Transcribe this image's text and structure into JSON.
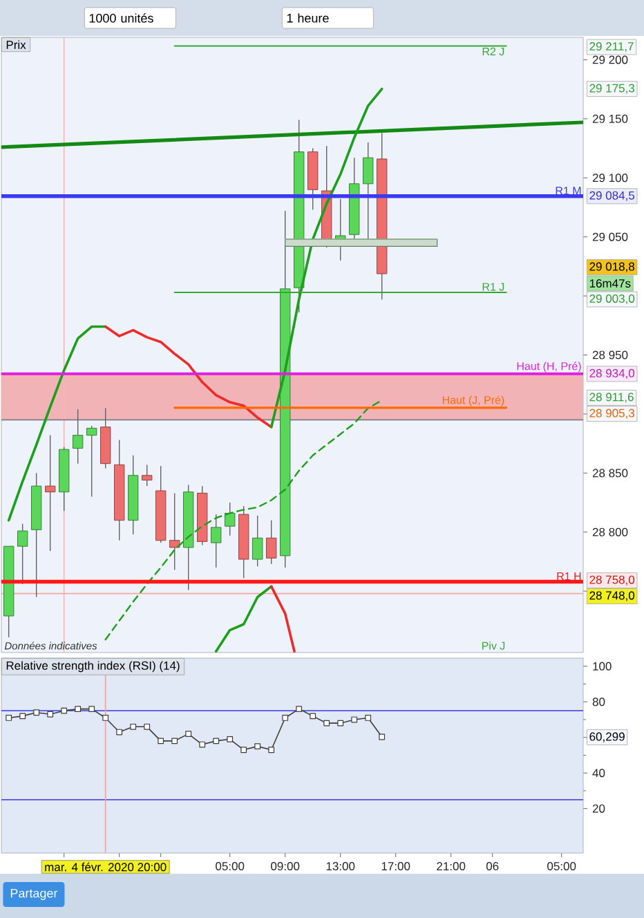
{
  "chart_data": [
    {
      "type": "candlestick",
      "title": "Prix",
      "x": [
        "2020-02-04T13:00",
        "2020-02-04T14:00",
        "2020-02-04T15:00",
        "2020-02-04T16:00",
        "2020-02-04T17:00",
        "2020-02-04T18:00",
        "2020-02-04T19:00",
        "2020-02-04T20:00",
        "2020-02-04T21:00",
        "2020-02-04T22:00",
        "2020-02-04T23:00",
        "2020-02-05T00:00",
        "2020-02-05T01:00",
        "2020-02-05T02:00",
        "2020-02-05T03:00",
        "2020-02-05T04:00",
        "2020-02-05T05:00",
        "2020-02-05T06:00",
        "2020-02-05T07:00",
        "2020-02-05T08:00",
        "2020-02-05T09:00",
        "2020-02-05T10:00",
        "2020-02-05T11:00",
        "2020-02-05T12:00",
        "2020-02-05T13:00",
        "2020-02-05T14:00",
        "2020-02-05T15:00",
        "2020-02-05T16:00"
      ],
      "xlim": [
        "2020-02-04T12:28",
        "2020-02-06T06:34"
      ],
      "ylim": [
        28698,
        29219
      ],
      "yticks": [
        {
          "value": 28750,
          "label": null
        },
        {
          "value": 28800,
          "label": "28 800"
        },
        {
          "value": 28850,
          "label": "28 850"
        },
        {
          "value": 28900,
          "label": null
        },
        {
          "value": 28950,
          "label": "28 950"
        },
        {
          "value": 29000,
          "label": null
        },
        {
          "value": 29050,
          "label": "29 050"
        },
        {
          "value": 29100,
          "label": "29 100"
        },
        {
          "value": 29150,
          "label": "29 150"
        },
        {
          "value": 29200,
          "label": "29 200"
        }
      ],
      "tick_labels": "y",
      "ohlc": [
        [
          28729,
          28788,
          28711,
          28788
        ],
        [
          28788,
          28807,
          28756,
          28801
        ],
        [
          28802,
          28850,
          28745,
          28839
        ],
        [
          28839,
          28882,
          28784,
          28834
        ],
        [
          28834,
          28872,
          28818,
          28870
        ],
        [
          28871,
          28904,
          28858,
          28882
        ],
        [
          28882,
          28890,
          28830,
          28888
        ],
        [
          28889,
          28905,
          28854,
          28858
        ],
        [
          28857,
          28878,
          28793,
          28810
        ],
        [
          28810,
          28865,
          28798,
          28848
        ],
        [
          28848,
          28857,
          28839,
          28844
        ],
        [
          28835,
          28856,
          28791,
          28793
        ],
        [
          28793,
          28833,
          28768,
          28787
        ],
        [
          28787,
          28840,
          28751,
          28834
        ],
        [
          28833,
          28839,
          28789,
          28792
        ],
        [
          28791,
          28815,
          28770,
          28804
        ],
        [
          28805,
          28825,
          28797,
          28816
        ],
        [
          28815,
          28822,
          28761,
          28777
        ],
        [
          28777,
          28814,
          28771,
          28795
        ],
        [
          28795,
          28810,
          28773,
          28778
        ],
        [
          28780,
          29072,
          28770,
          29006
        ],
        [
          29007,
          29149,
          28986,
          29122
        ],
        [
          29122,
          29125,
          29073,
          29090
        ],
        [
          29089,
          29127,
          29041,
          29046
        ],
        [
          29047,
          29082,
          29030,
          29051
        ],
        [
          29052,
          29117,
          29045,
          29095
        ],
        [
          29095,
          29130,
          29044,
          29117
        ],
        [
          29116,
          29138,
          28997,
          29018.8
        ]
      ],
      "colors": [
        "#5ad65a",
        "#5ad65a",
        "#5ad65a",
        "#ee6e6e",
        "#5ad65a",
        "#5ad65a",
        "#5ad65a",
        "#ee6e6e",
        "#ee6e6e",
        "#5ad65a",
        "#ee6e6e",
        "#ee6e6e",
        "#ee6e6e",
        "#5ad65a",
        "#ee6e6e",
        "#5ad65a",
        "#5ad65a",
        "#ee6e6e",
        "#5ad65a",
        "#ee6e6e",
        "#5ad65a",
        "#5ad65a",
        "#ee6e6e",
        "#ee6e6e",
        "#5ad65a",
        "#5ad65a",
        "#5ad65a",
        "#ee6e6e"
      ],
      "series": [
        {
          "type": "line",
          "color": "#138a13",
          "x": [
            "2020-02-04T12:28",
            "2020-02-06T06:34"
          ],
          "values": [
            29126,
            29147
          ]
        },
        {
          "type": "line",
          "color": "#1aa01a",
          "x": [
            "2020-02-04T13:00",
            "2020-02-04T14:00",
            "2020-02-04T15:00",
            "2020-02-04T16:00",
            "2020-02-04T17:00",
            "2020-02-04T18:00",
            "2020-02-04T19:00",
            "2020-02-04T20:00"
          ],
          "values": [
            28810,
            28843,
            28874,
            28906,
            28937,
            28964,
            28974,
            28974
          ]
        },
        {
          "type": "line",
          "color": "#f02a2a",
          "x": [
            "2020-02-04T20:00",
            "2020-02-04T21:00",
            "2020-02-04T22:00",
            "2020-02-04T23:00",
            "2020-02-05T00:00",
            "2020-02-05T01:00",
            "2020-02-05T02:00",
            "2020-02-05T03:00",
            "2020-02-05T04:00",
            "2020-02-05T05:00",
            "2020-02-05T06:00",
            "2020-02-05T07:00",
            "2020-02-05T08:00"
          ],
          "values": [
            28974,
            28966,
            28971,
            28965,
            28961,
            28951,
            28942,
            28927,
            28916,
            28910,
            28907,
            28897,
            28889
          ]
        },
        {
          "type": "line",
          "color": "#1aa01a",
          "x": [
            "2020-02-05T08:00",
            "2020-02-05T09:00",
            "2020-02-05T10:00",
            "2020-02-05T11:00",
            "2020-02-05T12:00",
            "2020-02-05T13:00",
            "2020-02-05T14:00",
            "2020-02-05T15:00",
            "2020-02-05T16:00"
          ],
          "values": [
            28889,
            28937,
            28997,
            29048,
            29078,
            29103,
            29134,
            29161,
            29175.3
          ]
        },
        {
          "type": "line",
          "color": "#1aa01a",
          "line_style": "dashed",
          "x": [
            "2020-02-04T20:00",
            "2020-02-04T21:00",
            "2020-02-04T22:00",
            "2020-02-04T23:00",
            "2020-02-05T00:00",
            "2020-02-05T01:00",
            "2020-02-05T02:00",
            "2020-02-05T03:00",
            "2020-02-05T04:00",
            "2020-02-05T05:00",
            "2020-02-05T06:00",
            "2020-02-05T07:00",
            "2020-02-05T08:00",
            "2020-02-05T09:00",
            "2020-02-05T10:00",
            "2020-02-05T11:00",
            "2020-02-05T12:00",
            "2020-02-05T13:00",
            "2020-02-05T14:00",
            "2020-02-05T15:00",
            "2020-02-05T16:00"
          ],
          "values": [
            28709,
            28725,
            28741,
            28756,
            28770,
            28785,
            28796,
            28805,
            28812,
            28816,
            28819,
            28821,
            28827,
            28836,
            28852,
            28865,
            28874,
            28883,
            28892,
            28905,
            28911.6
          ]
        },
        {
          "type": "line",
          "color": "#1aa01a",
          "x": [
            "2020-02-05T04:00",
            "2020-02-05T05:00",
            "2020-02-05T06:00",
            "2020-02-05T07:00",
            "2020-02-05T08:00"
          ],
          "values": [
            28699,
            28717,
            28722,
            28745,
            28754
          ]
        },
        {
          "type": "line",
          "color": "#f02a2a",
          "x": [
            "2020-02-05T08:00",
            "2020-02-05T09:00",
            "2020-02-05T09:40"
          ],
          "values": [
            28754,
            28731,
            28699
          ]
        },
        {
          "type": "line",
          "name": "R2 J",
          "color": "#33a833",
          "x": [
            "2020-02-05T01:00",
            "2020-02-06T01:00"
          ],
          "values": [
            29211.7,
            29211.7
          ]
        },
        {
          "type": "line",
          "name": "R1 J",
          "color": "#33a833",
          "x": [
            "2020-02-05T01:00",
            "2020-02-06T01:00"
          ],
          "values": [
            29003,
            29003
          ]
        },
        {
          "type": "line",
          "name": "Haut (J, Pré)",
          "color": "#ff6a00",
          "x": [
            "2020-02-05T01:00",
            "2020-02-06T01:00"
          ],
          "values": [
            28905.3,
            28905.3
          ]
        },
        {
          "type": "line",
          "name": "R1 M",
          "color": "#3a3af5",
          "x": [
            "2020-02-04T12:28",
            "2020-02-06T06:34"
          ],
          "values": [
            29084.5,
            29084.5
          ],
          "value_labels": [
            null,
            "29 084,5"
          ]
        },
        {
          "type": "line",
          "name": "Haut (H, Pré)",
          "color": "#e020e0",
          "x": [
            "2020-02-04T12:28",
            "2020-02-06T06:34"
          ],
          "values": [
            28934,
            28934
          ],
          "value_labels": [
            null,
            "28 934,0"
          ]
        },
        {
          "type": "line",
          "name": "R1 H",
          "color": "#ff1a1a",
          "x": [
            "2020-02-04T12:28",
            "2020-02-06T06:34"
          ],
          "values": [
            28758,
            28758
          ],
          "value_labels": [
            null,
            "28 758,0"
          ]
        },
        {
          "type": "line",
          "color": "#8fb08f",
          "x": [
            "2020-02-05T09:00",
            "2020-02-05T20:00"
          ],
          "values": [
            29048,
            29048
          ],
          "lower": [
            29042,
            29042
          ],
          "upper": [
            29048,
            29048
          ]
        }
      ],
      "bands": [
        {
          "axis": "y",
          "from": 28895,
          "to": 28934,
          "color": "#f2b3b7"
        }
      ],
      "ref_lines": [
        {
          "axis": "x",
          "value": "2020-02-04T17:00",
          "color": "#f5b5b5"
        },
        {
          "axis": "y",
          "value": 28748,
          "color": "#f5a5a5"
        },
        {
          "axis": "y",
          "value": 28895,
          "color": "#7c7c84"
        }
      ],
      "annotations": [
        "1000 unités",
        "1 heure",
        "Données indicatives",
        "Piv J",
        "29 211,7",
        "29 175,3",
        "29 018,8",
        "16m47s",
        "29 003,0",
        "28 911,6",
        "28 905,3",
        "28 748,0"
      ]
    },
    {
      "type": "line",
      "title": "Relative strength index (RSI) (14)",
      "x": [
        "2020-02-04T13:00",
        "2020-02-04T14:00",
        "2020-02-04T15:00",
        "2020-02-04T16:00",
        "2020-02-04T17:00",
        "2020-02-04T18:00",
        "2020-02-04T19:00",
        "2020-02-04T20:00",
        "2020-02-04T21:00",
        "2020-02-04T22:00",
        "2020-02-04T23:00",
        "2020-02-05T00:00",
        "2020-02-05T01:00",
        "2020-02-05T02:00",
        "2020-02-05T03:00",
        "2020-02-05T04:00",
        "2020-02-05T05:00",
        "2020-02-05T06:00",
        "2020-02-05T07:00",
        "2020-02-05T08:00",
        "2020-02-05T09:00",
        "2020-02-05T10:00",
        "2020-02-05T11:00",
        "2020-02-05T12:00",
        "2020-02-05T13:00",
        "2020-02-05T14:00",
        "2020-02-05T15:00",
        "2020-02-05T16:00"
      ],
      "values": [
        71,
        72,
        74,
        73,
        75,
        76,
        76,
        71,
        63,
        66,
        66,
        58,
        58,
        62,
        56,
        58,
        59,
        53,
        55,
        53,
        71,
        76,
        72,
        68,
        68,
        70,
        71,
        60.299
      ],
      "color": "#3c3c3c",
      "marker": "square",
      "xlim": [
        "2020-02-04T12:28",
        "2020-02-06T06:34"
      ],
      "ylim": [
        -5,
        104.6
      ],
      "xticks": [
        {
          "value": "2020-02-04T17:00",
          "label": null
        },
        {
          "value": "2020-02-04T21:00",
          "label": null
        },
        {
          "value": "2020-02-05T00:00",
          "label": null
        },
        {
          "value": "2020-02-05T05:00",
          "label": "05:00"
        },
        {
          "value": "2020-02-05T09:00",
          "label": "09:00"
        },
        {
          "value": "2020-02-05T13:00",
          "label": "13:00"
        },
        {
          "value": "2020-02-05T17:00",
          "label": "17:00"
        },
        {
          "value": "2020-02-05T21:00",
          "label": "21:00"
        },
        {
          "value": "2020-02-06T00:00",
          "label": "06"
        },
        {
          "value": "2020-02-06T05:00",
          "label": "05:00"
        }
      ],
      "yticks": [
        20,
        40,
        {
          "value": 60,
          "label": null
        },
        80,
        100
      ],
      "ref_lines": [
        {
          "axis": "y",
          "value": 75,
          "color": "#5050e0"
        },
        {
          "axis": "y",
          "value": 25,
          "color": "#5050e0"
        },
        {
          "axis": "x",
          "value": "2020-02-04T20:00",
          "label": "mar. 4 févr. 2020 20:00",
          "color": "#f0a0a0"
        }
      ],
      "annotations": [
        "Partager",
        "60,299"
      ]
    }
  ]
}
